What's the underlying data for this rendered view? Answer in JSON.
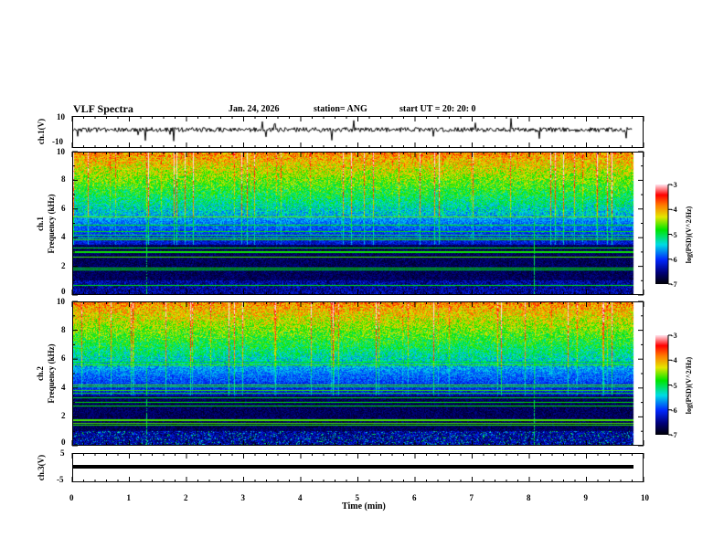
{
  "header": {
    "title": "VLF Spectra",
    "date": "Jan. 24, 2026",
    "station": "station= ANG",
    "start": "start UT =   20: 20: 0"
  },
  "chart_data": [
    {
      "type": "line",
      "name": "ch1-waveform",
      "ylabel": "ch.1(V)",
      "ylim": [
        -10,
        10
      ],
      "yticks": [
        "10",
        "-10"
      ],
      "xlim": [
        0,
        10
      ]
    },
    {
      "type": "heatmap",
      "name": "ch1-spectrogram",
      "ylabel_top": "ch.1",
      "ylabel": "Frequency (kHz)",
      "ylim": [
        0,
        10
      ],
      "yticks": [
        "0",
        "2",
        "4",
        "6",
        "8",
        "10"
      ],
      "xlim": [
        0,
        10
      ],
      "colorbar": {
        "label": "log(PSD)(V^2/Hz)",
        "range": [
          -7,
          -3
        ],
        "ticks": [
          "-3",
          "-4",
          "-5",
          "-6",
          "-7"
        ]
      }
    },
    {
      "type": "heatmap",
      "name": "ch2-spectrogram",
      "ylabel_top": "ch.2",
      "ylabel": "Frequency (kHz)",
      "ylim": [
        0,
        10
      ],
      "yticks": [
        "0",
        "2",
        "4",
        "6",
        "8",
        "10"
      ],
      "xlim": [
        0,
        10
      ],
      "colorbar": {
        "label": "log(PSD)(V^2/Hz)",
        "range": [
          -7,
          -3
        ],
        "ticks": [
          "-3",
          "-4",
          "-5",
          "-6",
          "-7"
        ]
      }
    },
    {
      "type": "line",
      "name": "ch3-waveform",
      "ylabel": "ch.3(V)",
      "ylim": [
        -5,
        5
      ],
      "yticks": [
        "5",
        "-5"
      ],
      "value": 0,
      "xlim": [
        0,
        10
      ]
    }
  ],
  "xaxis": {
    "label": "Time (min)",
    "ticks": [
      "0",
      "1",
      "2",
      "3",
      "4",
      "5",
      "6",
      "7",
      "8",
      "9",
      "10"
    ]
  }
}
